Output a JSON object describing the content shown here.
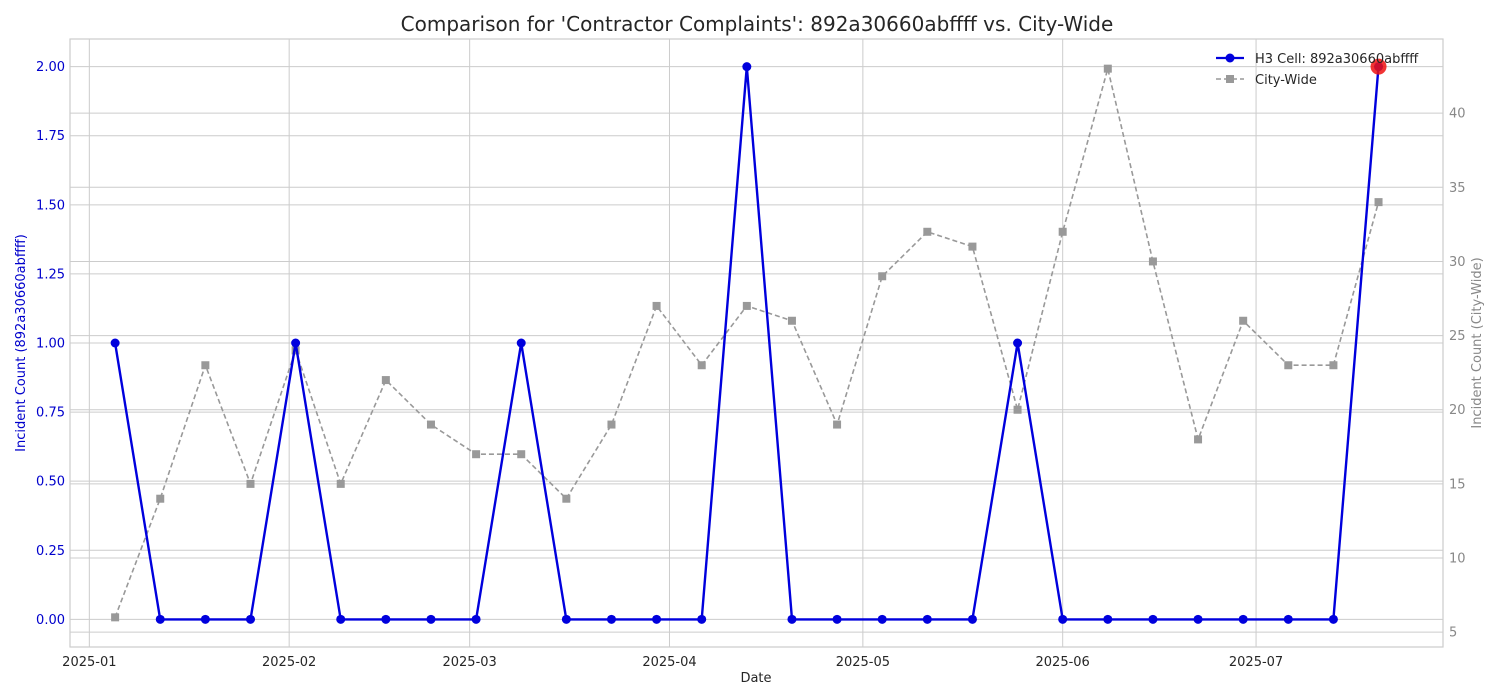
{
  "chart_data": {
    "type": "line",
    "title": "Comparison for 'Contractor Complaints': 892a30660abffff vs. City-Wide",
    "xlabel": "Date",
    "ylabel_left": "Incident Count (892a30660abffff)",
    "ylabel_right": "Incident Count (City-Wide)",
    "x_ticks": [
      "2025-01",
      "2025-02",
      "2025-03",
      "2025-04",
      "2025-05",
      "2025-06",
      "2025-07"
    ],
    "x_range": [
      "2024-12-29",
      "2025-07-30"
    ],
    "y_left_ticks": [
      "0.00",
      "0.25",
      "0.50",
      "0.75",
      "1.00",
      "1.25",
      "1.50",
      "1.75",
      "2.00"
    ],
    "y_left_range": [
      -0.1,
      2.1
    ],
    "y_right_ticks": [
      "5",
      "10",
      "15",
      "20",
      "25",
      "30",
      "35",
      "40"
    ],
    "y_right_range": [
      4,
      45
    ],
    "grid": true,
    "legend_position": "top-right",
    "x": [
      "2025-01-05",
      "2025-01-12",
      "2025-01-19",
      "2025-01-26",
      "2025-02-02",
      "2025-02-09",
      "2025-02-16",
      "2025-02-23",
      "2025-03-02",
      "2025-03-09",
      "2025-03-16",
      "2025-03-23",
      "2025-03-30",
      "2025-04-06",
      "2025-04-13",
      "2025-04-20",
      "2025-04-27",
      "2025-05-04",
      "2025-05-11",
      "2025-05-18",
      "2025-05-25",
      "2025-06-01",
      "2025-06-08",
      "2025-06-15",
      "2025-06-22",
      "2025-06-29",
      "2025-07-06",
      "2025-07-13",
      "2025-07-20"
    ],
    "series": [
      {
        "name": "H3 Cell: 892a30660abffff",
        "axis": "left",
        "color": "#0000dd",
        "style": "solid",
        "marker": "circle",
        "values": [
          1,
          0,
          0,
          0,
          1,
          0,
          0,
          0,
          0,
          1,
          0,
          0,
          0,
          0,
          2,
          0,
          0,
          0,
          0,
          0,
          1,
          0,
          0,
          0,
          0,
          0,
          0,
          0,
          2
        ]
      },
      {
        "name": "City-Wide",
        "axis": "right",
        "color": "#999999",
        "style": "dashed",
        "marker": "square",
        "values": [
          6,
          14,
          23,
          15,
          24,
          15,
          22,
          19,
          17,
          17,
          14,
          19,
          27,
          23,
          27,
          26,
          19,
          29,
          32,
          31,
          20,
          32,
          43,
          30,
          18,
          26,
          23,
          23,
          34
        ]
      }
    ],
    "highlight": {
      "series": 0,
      "index": 28,
      "color": "#ee1111"
    }
  },
  "colors": {
    "left_axis": "#0000cc",
    "right_axis": "#888888",
    "grid": "#cccccc",
    "text": "#262626"
  }
}
